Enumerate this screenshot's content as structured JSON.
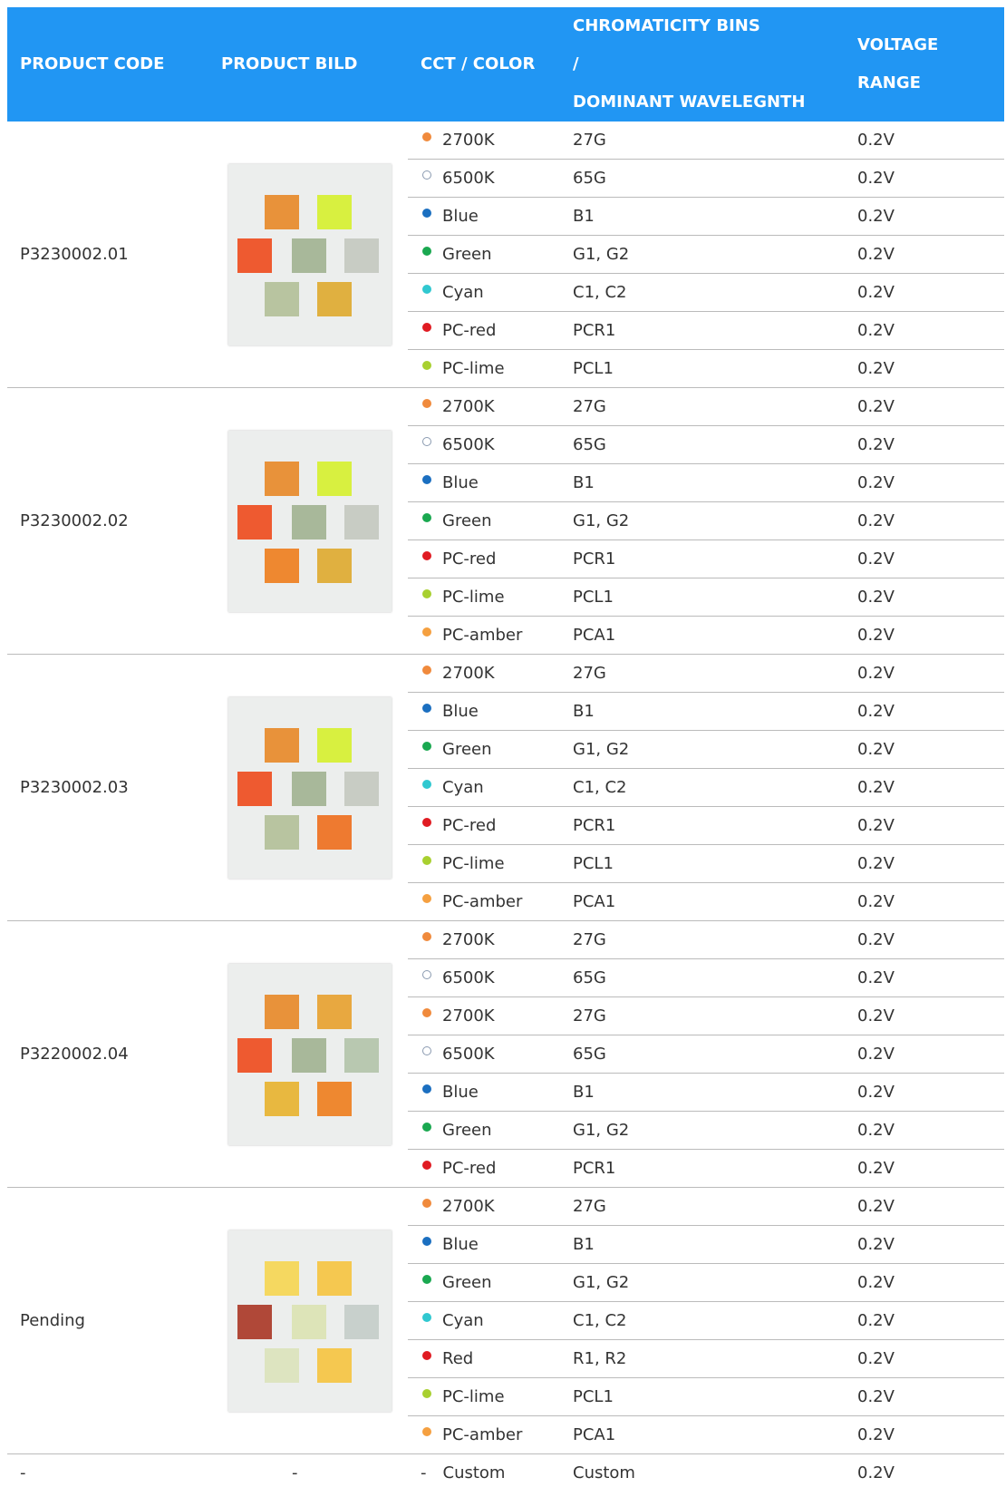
{
  "header": {
    "columns": [
      [
        "PRODUCT CODE"
      ],
      [
        "PRODUCT BILD"
      ],
      [
        "CCT / COLOR"
      ],
      [
        "CHROMATICITY BINS",
        "/",
        "DOMINANT WAVELEGNTH"
      ],
      [
        "VOLTAGE",
        "RANGE"
      ]
    ]
  },
  "groups": [
    {
      "code": "P3230002.01",
      "rows": [
        {
          "color": "#f08a3c",
          "label": "2700K",
          "bin": "27G",
          "voltage": "0.2V"
        },
        {
          "color": "#ffffff",
          "label": "6500K",
          "bin": "65G",
          "voltage": "0.2V"
        },
        {
          "color": "#1b6fc0",
          "label": "Blue",
          "bin": "B1",
          "voltage": "0.2V"
        },
        {
          "color": "#1aa850",
          "label": "Green",
          "bin": "G1, G2",
          "voltage": "0.2V"
        },
        {
          "color": "#30c8d0",
          "label": "Cyan",
          "bin": "C1, C2",
          "voltage": "0.2V"
        },
        {
          "color": "#e01b22",
          "label": "PC-red",
          "bin": "PCR1",
          "voltage": "0.2V"
        },
        {
          "color": "#a8d030",
          "label": "PC-lime",
          "bin": "PCL1",
          "voltage": "0.2V"
        }
      ]
    },
    {
      "code": "P3230002.02",
      "rows": [
        {
          "color": "#f08a3c",
          "label": "2700K",
          "bin": "27G",
          "voltage": "0.2V"
        },
        {
          "color": "#ffffff",
          "label": "6500K",
          "bin": "65G",
          "voltage": "0.2V"
        },
        {
          "color": "#1b6fc0",
          "label": "Blue",
          "bin": "B1",
          "voltage": "0.2V"
        },
        {
          "color": "#1aa850",
          "label": "Green",
          "bin": "G1, G2",
          "voltage": "0.2V"
        },
        {
          "color": "#e01b22",
          "label": "PC-red",
          "bin": "PCR1",
          "voltage": "0.2V"
        },
        {
          "color": "#a8d030",
          "label": "PC-lime",
          "bin": "PCL1",
          "voltage": "0.2V"
        },
        {
          "color": "#f5a040",
          "label": "PC-amber",
          "bin": "PCA1",
          "voltage": "0.2V"
        }
      ]
    },
    {
      "code": "P3230002.03",
      "rows": [
        {
          "color": "#f08a3c",
          "label": "2700K",
          "bin": "27G",
          "voltage": "0.2V"
        },
        {
          "color": "#1b6fc0",
          "label": "Blue",
          "bin": "B1",
          "voltage": "0.2V"
        },
        {
          "color": "#1aa850",
          "label": "Green",
          "bin": "G1, G2",
          "voltage": "0.2V"
        },
        {
          "color": "#30c8d0",
          "label": "Cyan",
          "bin": "C1, C2",
          "voltage": "0.2V"
        },
        {
          "color": "#e01b22",
          "label": "PC-red",
          "bin": "PCR1",
          "voltage": "0.2V"
        },
        {
          "color": "#a8d030",
          "label": "PC-lime",
          "bin": "PCL1",
          "voltage": "0.2V"
        },
        {
          "color": "#f5a040",
          "label": "PC-amber",
          "bin": "PCA1",
          "voltage": "0.2V"
        }
      ]
    },
    {
      "code": "P3220002.04",
      "rows": [
        {
          "color": "#f08a3c",
          "label": "2700K",
          "bin": "27G",
          "voltage": "0.2V"
        },
        {
          "color": "#ffffff",
          "label": "6500K",
          "bin": "65G",
          "voltage": "0.2V"
        },
        {
          "color": "#f08a3c",
          "label": "2700K",
          "bin": "27G",
          "voltage": "0.2V"
        },
        {
          "color": "#ffffff",
          "label": "6500K",
          "bin": "65G",
          "voltage": "0.2V"
        },
        {
          "color": "#1b6fc0",
          "label": "Blue",
          "bin": "B1",
          "voltage": "0.2V"
        },
        {
          "color": "#1aa850",
          "label": "Green",
          "bin": "G1, G2",
          "voltage": "0.2V"
        },
        {
          "color": "#e01b22",
          "label": "PC-red",
          "bin": "PCR1",
          "voltage": "0.2V"
        }
      ]
    },
    {
      "code": "Pending",
      "rows": [
        {
          "color": "#f08a3c",
          "label": "2700K",
          "bin": "27G",
          "voltage": "0.2V"
        },
        {
          "color": "#1b6fc0",
          "label": "Blue",
          "bin": "B1",
          "voltage": "0.2V"
        },
        {
          "color": "#1aa850",
          "label": "Green",
          "bin": "G1, G2",
          "voltage": "0.2V"
        },
        {
          "color": "#30c8d0",
          "label": "Cyan",
          "bin": "C1, C2",
          "voltage": "0.2V"
        },
        {
          "color": "#e01b22",
          "label": "Red",
          "bin": "R1, R2",
          "voltage": "0.2V"
        },
        {
          "color": "#a8d030",
          "label": "PC-lime",
          "bin": "PCL1",
          "voltage": "0.2V"
        },
        {
          "color": "#f5a040",
          "label": "PC-amber",
          "bin": "PCA1",
          "voltage": "0.2V"
        }
      ]
    }
  ],
  "last_row": {
    "code": "-",
    "bild": "-",
    "marker": "-",
    "label": "Custom",
    "bin": "Custom",
    "voltage": "0.2V"
  }
}
